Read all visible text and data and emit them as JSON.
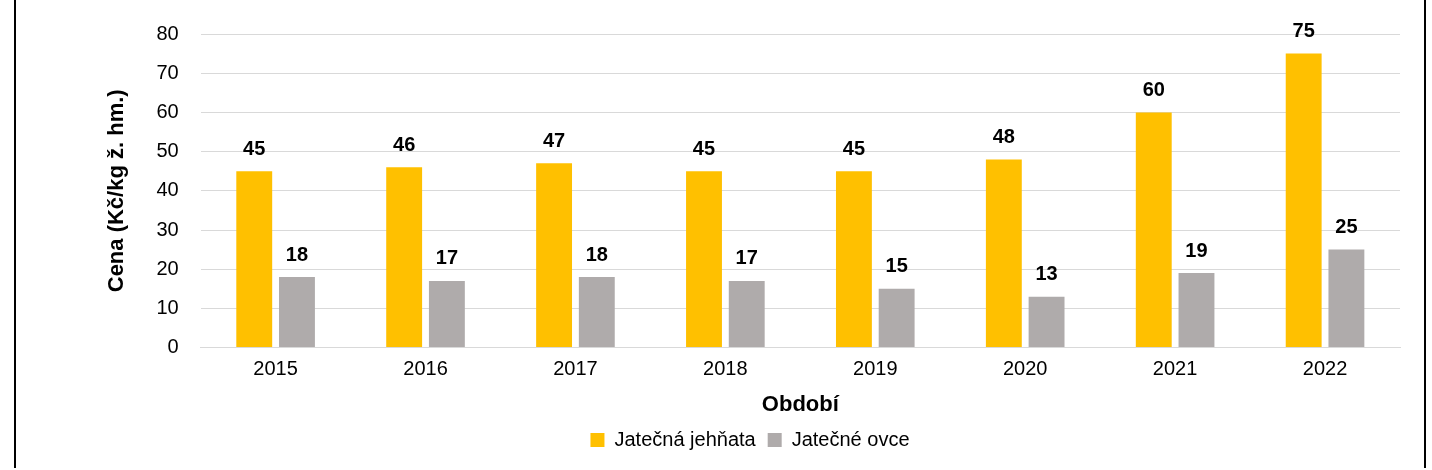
{
  "chart_data": {
    "type": "bar",
    "xlabel": "Období",
    "ylabel": "Cena (Kč/kg ž. hm.)",
    "categories": [
      "2015",
      "2016",
      "2017",
      "2018",
      "2019",
      "2020",
      "2021",
      "2022"
    ],
    "series": [
      {
        "name": "Jatečná jehňata",
        "color": "#ffc000",
        "values": [
          45,
          46,
          47,
          45,
          45,
          48,
          60,
          75
        ]
      },
      {
        "name": "Jatečné ovce",
        "color": "#afabab",
        "values": [
          18,
          17,
          18,
          17,
          15,
          13,
          19,
          25
        ]
      }
    ],
    "ylim": [
      0,
      80
    ],
    "yticks": [
      0,
      10,
      20,
      30,
      40,
      50,
      60,
      70,
      80
    ],
    "grid": "y",
    "legend": "bottom",
    "data_labels": true
  }
}
